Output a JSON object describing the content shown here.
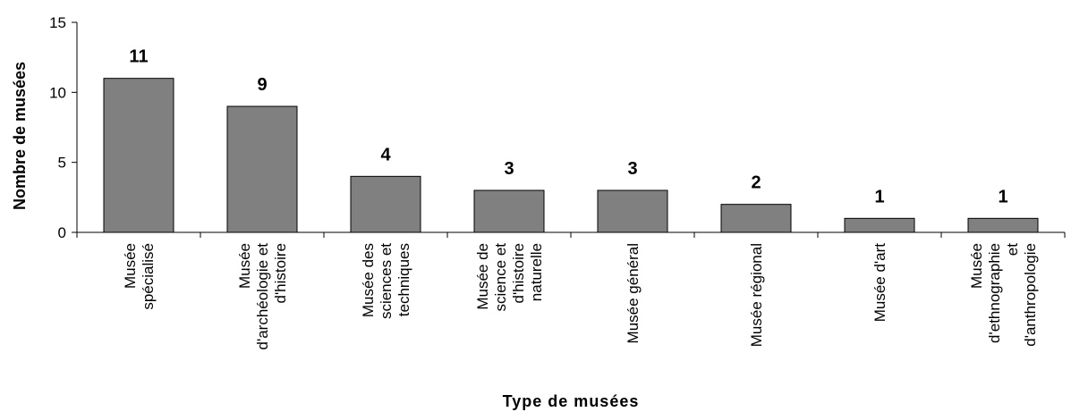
{
  "chart_data": {
    "type": "bar",
    "categories": [
      [
        "Musée",
        "spécialisé"
      ],
      [
        "Musée",
        "d'archéologie et",
        "d'histoire"
      ],
      [
        "Musée des",
        "sciences et",
        "techniques"
      ],
      [
        "Musée de",
        "science et",
        "d'histoire",
        "naturelle"
      ],
      [
        "Musée général"
      ],
      [
        "Musée régional"
      ],
      [
        "Musée d'art"
      ],
      [
        "Musée",
        "d'ethnographie",
        "et",
        "d'anthropologie"
      ]
    ],
    "values": [
      11,
      9,
      4,
      3,
      3,
      2,
      1,
      1
    ],
    "xlabel": "Type de musées",
    "ylabel": "Nombre de musées",
    "ylim": [
      0,
      15
    ],
    "yticks": [
      0,
      5,
      10,
      15
    ],
    "grid": false,
    "legend": "none",
    "colors": {
      "bar_fill": "#808080",
      "bar_stroke": "#000000",
      "axis": "#000000"
    }
  }
}
